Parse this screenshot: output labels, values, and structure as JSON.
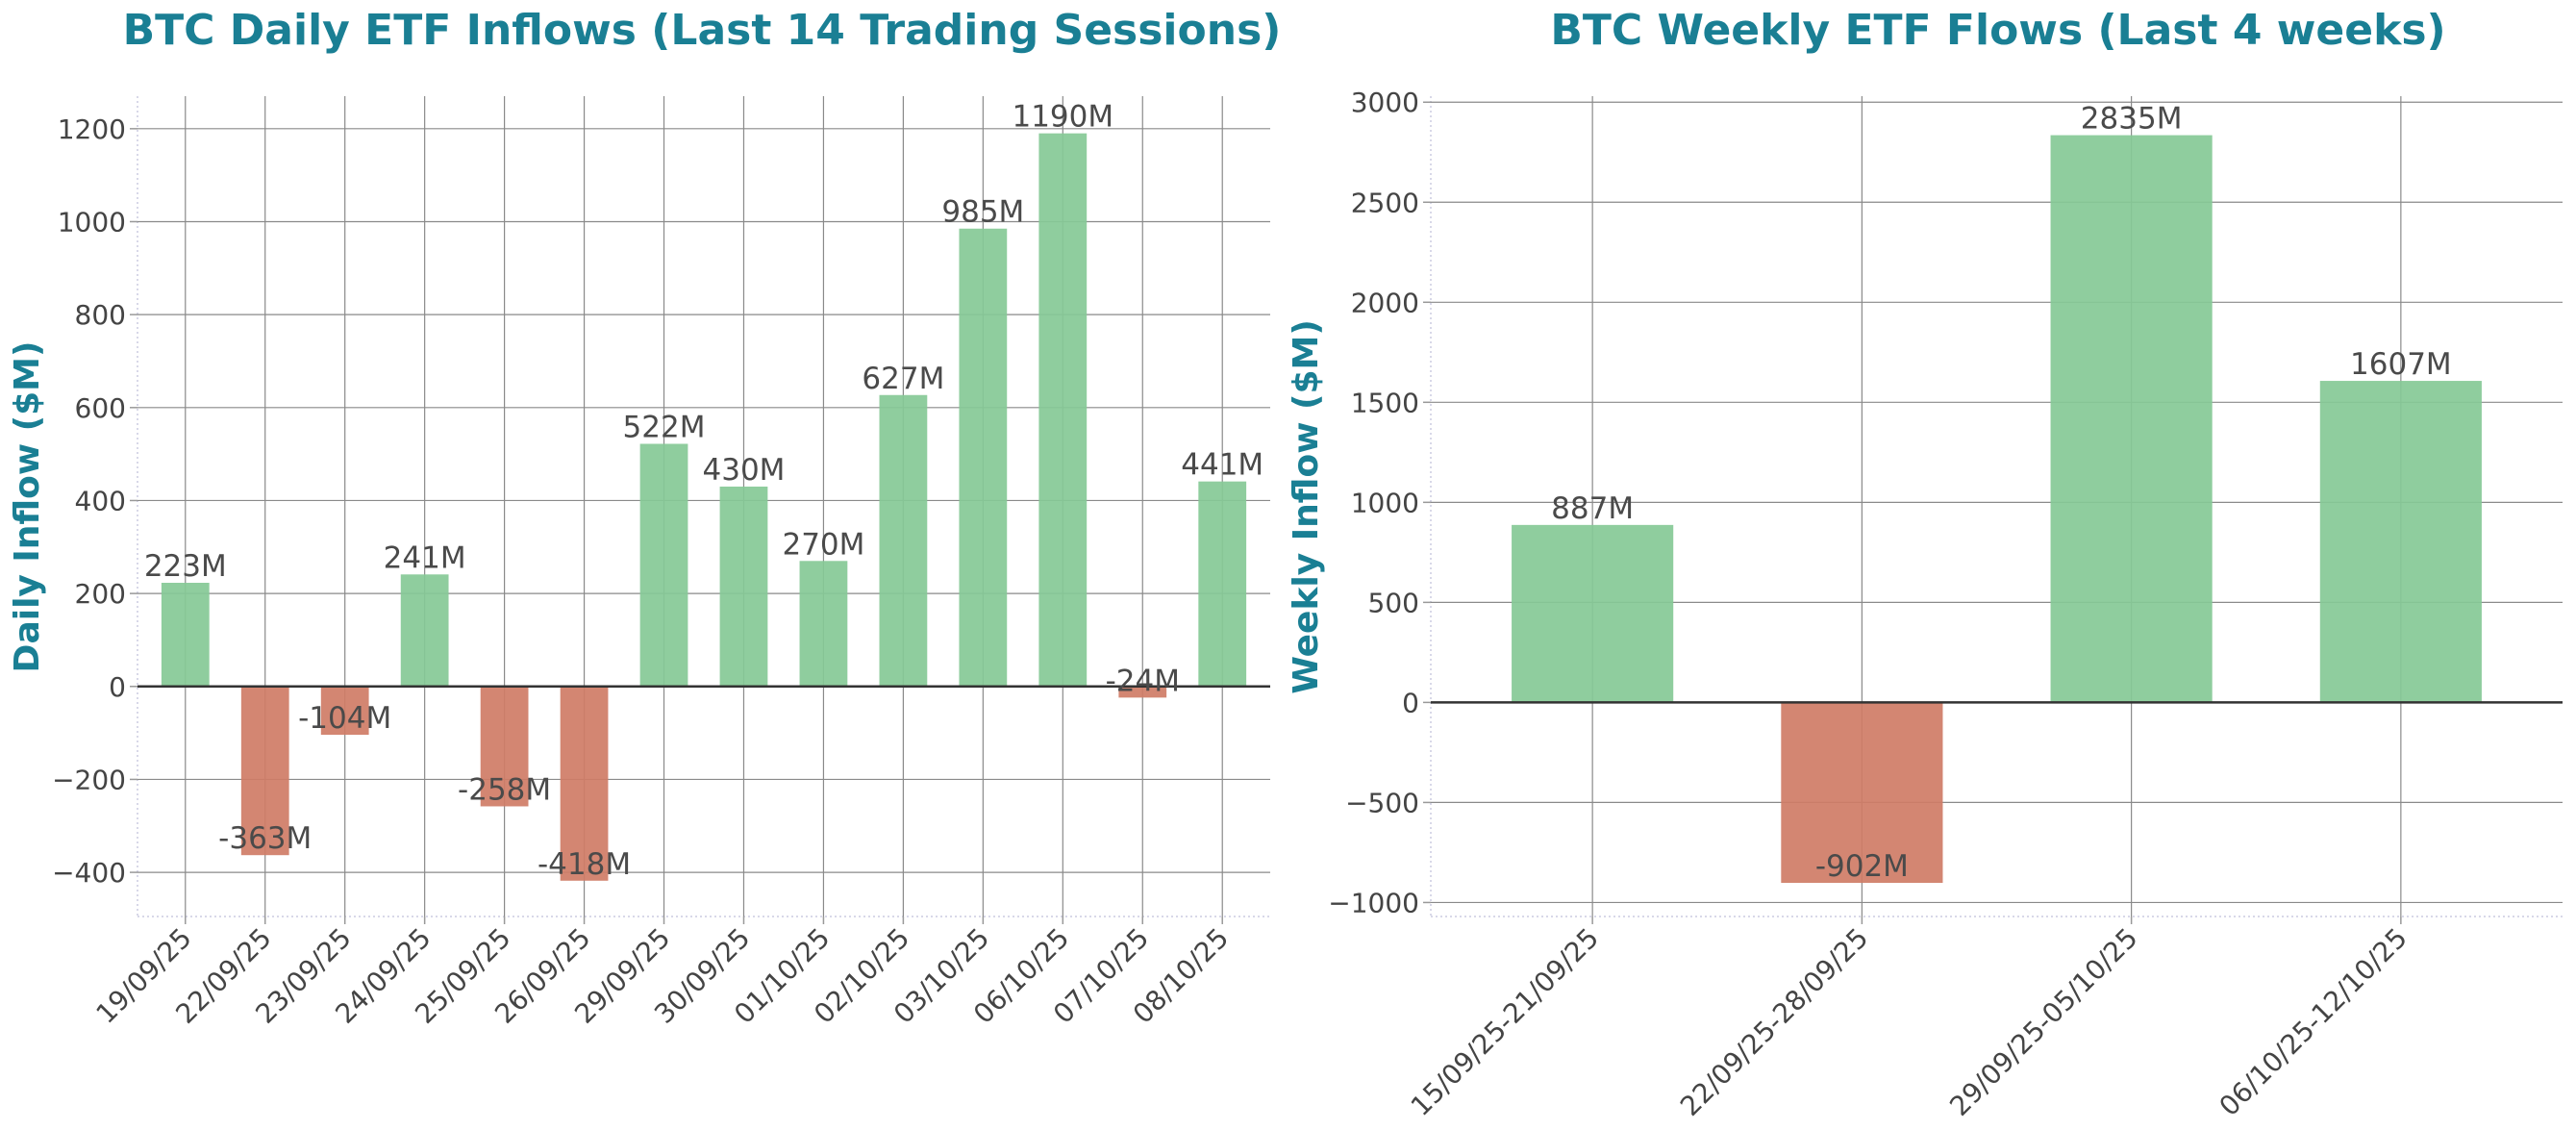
{
  "colors": {
    "title": "#1a7f94",
    "positive": "#85c996",
    "negative": "#cf7c66",
    "grid": "#8a8a8a",
    "zero_line": "#333333",
    "tick_text": "#444444",
    "label_text": "#4a4a4a"
  },
  "chart_data": [
    {
      "type": "bar",
      "title": "BTC Daily ETF Inflows (Last 14 Trading Sessions)",
      "xlabel": "",
      "ylabel": "Daily Inflow ($M)",
      "categories": [
        "19/09/25",
        "22/09/25",
        "23/09/25",
        "24/09/25",
        "25/09/25",
        "26/09/25",
        "29/09/25",
        "30/09/25",
        "01/10/25",
        "02/10/25",
        "03/10/25",
        "06/10/25",
        "07/10/25",
        "08/10/25"
      ],
      "values": [
        223,
        -363,
        -104,
        241,
        -258,
        -418,
        522,
        430,
        270,
        627,
        985,
        1190,
        -24,
        441
      ],
      "data_labels": [
        "223M",
        "-363M",
        "-104M",
        "241M",
        "-258M",
        "-418M",
        "522M",
        "430M",
        "270M",
        "627M",
        "985M",
        "1190M",
        "-24M",
        "441M"
      ],
      "ylim": [
        -495,
        1270
      ],
      "yticks": [
        -400,
        -200,
        0,
        200,
        400,
        600,
        800,
        1000,
        1200
      ],
      "ytick_labels": [
        "−400",
        "−200",
        "0",
        "200",
        "400",
        "600",
        "800",
        "1000",
        "1200"
      ],
      "grid": true
    },
    {
      "type": "bar",
      "title": "BTC Weekly ETF Flows (Last 4 weeks)",
      "xlabel": "",
      "ylabel": "Weekly Inflow ($M)",
      "categories": [
        "15/09/25-21/09/25",
        "22/09/25-28/09/25",
        "29/09/25-05/10/25",
        "06/10/25-12/10/25"
      ],
      "values": [
        887,
        -902,
        2835,
        1607
      ],
      "data_labels": [
        "887M",
        "-902M",
        "2835M",
        "1607M"
      ],
      "ylim": [
        -1070,
        3030
      ],
      "yticks": [
        -1000,
        -500,
        0,
        500,
        1000,
        1500,
        2000,
        2500,
        3000
      ],
      "ytick_labels": [
        "−1000",
        "−500",
        "0",
        "500",
        "1000",
        "1500",
        "2000",
        "2500",
        "3000"
      ],
      "grid": true
    }
  ]
}
